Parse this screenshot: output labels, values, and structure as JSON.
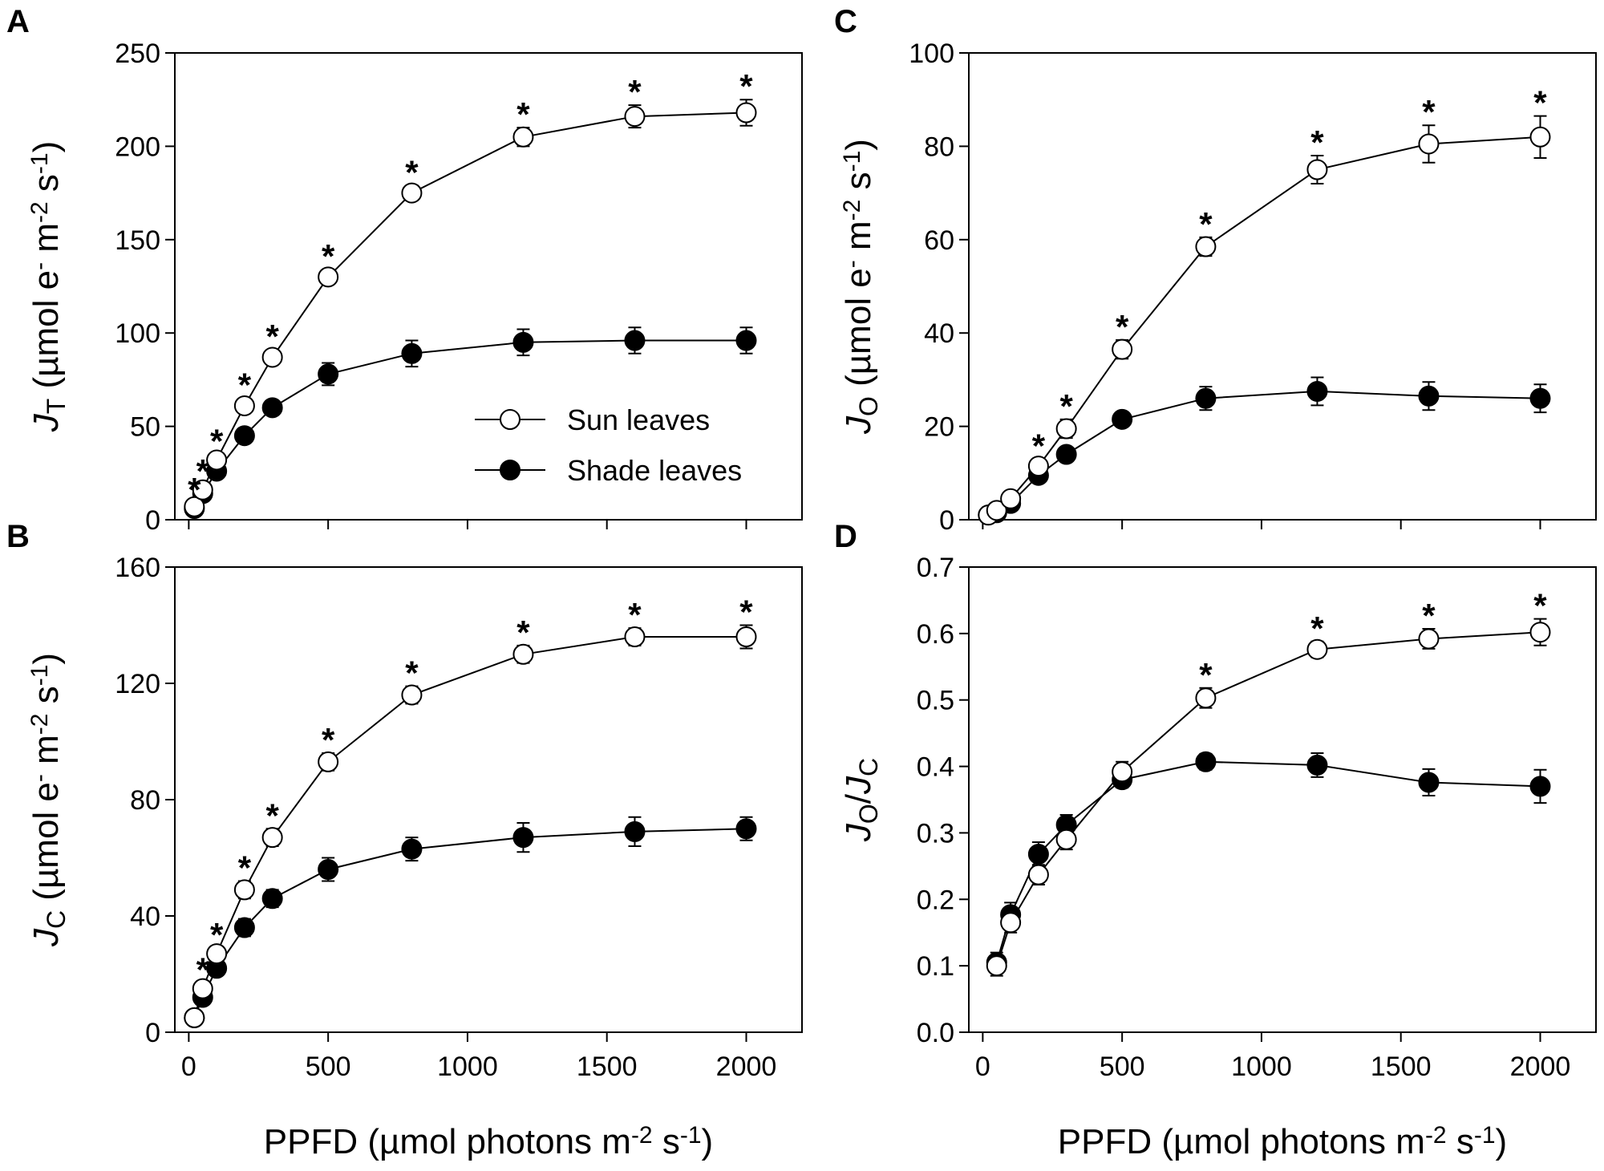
{
  "figure": {
    "x_axis_title": {
      "main": "PPFD (µmol photons m",
      "sup1": "-2",
      "mid": " s",
      "sup2": "-1",
      "close": ")"
    },
    "legend": {
      "sun": "Sun leaves",
      "shade": "Shade leaves"
    },
    "colors": {
      "sun_fill": "#ffffff",
      "shade_fill": "#000000",
      "stroke": "#000000"
    }
  },
  "chart_data": [
    {
      "type": "scatter",
      "panel": "A",
      "y_title": {
        "sym": "J",
        "sub": "T",
        "unit": "(µmol e",
        "sup1": "-",
        "mid1": " m",
        "sup2": "-2",
        "mid2": " s",
        "sup3": "-1",
        "close": ")"
      },
      "xlim": [
        -50,
        2200
      ],
      "ylim": [
        0,
        250
      ],
      "xticks": [
        0,
        500,
        1000,
        1500,
        2000
      ],
      "yticks": [
        0,
        50,
        100,
        150,
        200,
        250
      ],
      "show_x_labels": false,
      "show_legend": true,
      "x": [
        20,
        50,
        100,
        200,
        300,
        500,
        800,
        1200,
        1600,
        2000
      ],
      "series": [
        {
          "name": "Sun leaves",
          "values": [
            7,
            16,
            32,
            61,
            87,
            130,
            175,
            205,
            216,
            218
          ],
          "errors": [
            2,
            3,
            3,
            4,
            4,
            4,
            4,
            5,
            6,
            7
          ],
          "significant": [
            true,
            true,
            true,
            true,
            true,
            true,
            true,
            true,
            true,
            true
          ]
        },
        {
          "name": "Shade leaves",
          "values": [
            6,
            14,
            26,
            45,
            60,
            78,
            89,
            95,
            96,
            96
          ],
          "errors": [
            2,
            2,
            3,
            4,
            4,
            6,
            7,
            7,
            7,
            7
          ]
        }
      ]
    },
    {
      "type": "scatter",
      "panel": "B",
      "y_title": {
        "sym": "J",
        "sub": "C",
        "unit": "(µmol e",
        "sup1": "-",
        "mid1": " m",
        "sup2": "-2",
        "mid2": " s",
        "sup3": "-1",
        "close": ")"
      },
      "xlim": [
        -50,
        2200
      ],
      "ylim": [
        0,
        160
      ],
      "xticks": [
        0,
        500,
        1000,
        1500,
        2000
      ],
      "yticks": [
        0,
        40,
        80,
        120,
        160
      ],
      "show_x_labels": true,
      "show_legend": false,
      "x": [
        20,
        50,
        100,
        200,
        300,
        500,
        800,
        1200,
        1600,
        2000
      ],
      "series": [
        {
          "name": "Sun leaves",
          "values": [
            5,
            15,
            27,
            49,
            67,
            93,
            116,
            130,
            136,
            136
          ],
          "errors": [
            1,
            2,
            2,
            3,
            3,
            3,
            3,
            3,
            3,
            4
          ],
          "significant": [
            false,
            true,
            true,
            true,
            true,
            true,
            true,
            true,
            true,
            true
          ]
        },
        {
          "name": "Shade leaves",
          "values": [
            5,
            12,
            22,
            36,
            46,
            56,
            63,
            67,
            69,
            70
          ],
          "errors": [
            1,
            2,
            2,
            3,
            3,
            4,
            4,
            5,
            5,
            4
          ]
        }
      ]
    },
    {
      "type": "scatter",
      "panel": "C",
      "y_title": {
        "sym": "J",
        "sub": "O",
        "unit": "(µmol e",
        "sup1": "-",
        "mid1": " m",
        "sup2": "-2",
        "mid2": " s",
        "sup3": "-1",
        "close": ")"
      },
      "xlim": [
        -50,
        2200
      ],
      "ylim": [
        0,
        100
      ],
      "xticks": [
        0,
        500,
        1000,
        1500,
        2000
      ],
      "yticks": [
        0,
        20,
        40,
        60,
        80,
        100
      ],
      "show_x_labels": false,
      "show_legend": false,
      "x": [
        20,
        50,
        100,
        200,
        300,
        500,
        800,
        1200,
        1600,
        2000
      ],
      "series": [
        {
          "name": "Sun leaves",
          "values": [
            1,
            2,
            4.5,
            11.5,
            19.5,
            36.5,
            58.5,
            75,
            80.5,
            82
          ],
          "errors": [
            0.5,
            0.5,
            1,
            1.5,
            2,
            2,
            2,
            3,
            4,
            4.5
          ],
          "significant": [
            false,
            false,
            false,
            true,
            true,
            true,
            true,
            true,
            true,
            true
          ]
        },
        {
          "name": "Shade leaves",
          "values": [
            1,
            1.5,
            3.5,
            9.5,
            14,
            21.5,
            26,
            27.5,
            26.5,
            26
          ],
          "errors": [
            0.5,
            0.5,
            1,
            1.5,
            1.5,
            1.5,
            2.5,
            3,
            3,
            3
          ]
        }
      ]
    },
    {
      "type": "scatter",
      "panel": "D",
      "y_title": {
        "sym": "J",
        "sub": "O",
        "slash": "/",
        "sym2": "J",
        "sub2": "C"
      },
      "xlim": [
        -50,
        2200
      ],
      "ylim": [
        0,
        0.7
      ],
      "xticks": [
        0,
        500,
        1000,
        1500,
        2000
      ],
      "yticks": [
        "0.0",
        "0.1",
        "0.2",
        "0.3",
        "0.4",
        "0.5",
        "0.6",
        "0.7"
      ],
      "show_x_labels": true,
      "show_legend": false,
      "x": [
        50,
        100,
        200,
        300,
        500,
        800,
        1200,
        1600,
        2000
      ],
      "series": [
        {
          "name": "Sun leaves",
          "values": [
            0.1,
            0.165,
            0.237,
            0.29,
            0.392,
            0.503,
            0.576,
            0.592,
            0.602
          ],
          "errors": [
            0.015,
            0.015,
            0.015,
            0.015,
            0.015,
            0.015,
            0.012,
            0.015,
            0.02
          ],
          "significant": [
            false,
            false,
            false,
            false,
            false,
            true,
            true,
            true,
            true
          ]
        },
        {
          "name": "Shade leaves",
          "values": [
            0.105,
            0.177,
            0.268,
            0.312,
            0.38,
            0.407,
            0.402,
            0.376,
            0.37
          ],
          "errors": [
            0.015,
            0.018,
            0.018,
            0.015,
            0.012,
            0.012,
            0.018,
            0.02,
            0.025
          ]
        }
      ]
    }
  ]
}
